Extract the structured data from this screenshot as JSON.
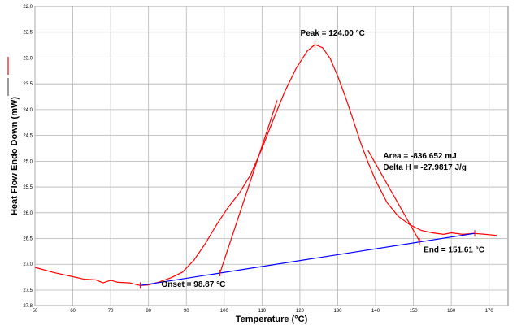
{
  "chart_data": {
    "type": "line",
    "title": "",
    "xlabel": "Temperature (°C)",
    "ylabel": "Heat Flow Endo Down (mW)",
    "xlim": [
      50,
      175
    ],
    "ylim": [
      22.0,
      27.8
    ],
    "y_inverted": true,
    "grid": true,
    "x_ticks": [
      "50",
      "60",
      "70",
      "80",
      "90",
      "100",
      "110",
      "120",
      "130",
      "140",
      "150",
      "160",
      "170"
    ],
    "y_ticks": [
      "22.0",
      "22.5",
      "23.0",
      "23.5",
      "24.0",
      "24.5",
      "25.0",
      "25.5",
      "26.0",
      "26.5",
      "27.0",
      "27.5",
      "27.8"
    ],
    "y_tick_values": [
      22.0,
      22.5,
      23.0,
      23.5,
      24.0,
      24.5,
      25.0,
      25.5,
      26.0,
      26.5,
      27.0,
      27.5,
      27.8
    ],
    "series": [
      {
        "color": "#ff0000",
        "x": [
          50,
          55,
          60,
          63,
          66,
          68,
          70,
          72,
          75,
          77.8,
          80,
          83,
          86,
          89,
          92,
          95,
          98,
          101,
          104,
          107,
          110,
          113,
          116,
          119,
          122,
          124,
          126,
          128,
          130,
          132,
          134,
          136,
          138,
          140,
          143,
          146,
          149,
          152,
          155,
          158,
          160,
          163,
          166,
          169,
          172
        ],
        "y": [
          27.06,
          27.16,
          27.24,
          27.29,
          27.3,
          27.36,
          27.31,
          27.35,
          27.36,
          27.41,
          27.4,
          27.34,
          27.26,
          27.15,
          26.92,
          26.6,
          26.23,
          25.9,
          25.62,
          25.26,
          24.75,
          24.19,
          23.65,
          23.2,
          22.86,
          22.74,
          22.8,
          23.01,
          23.35,
          23.75,
          24.18,
          24.63,
          25.02,
          25.37,
          25.8,
          26.07,
          26.23,
          26.34,
          26.39,
          26.42,
          26.39,
          26.42,
          26.4,
          26.42,
          26.44
        ]
      },
      {
        "color": "#0000ff",
        "x": [
          77.8,
          166.2
        ],
        "y": [
          27.41,
          26.4
        ]
      }
    ],
    "tangents": [
      {
        "color": "#ff0000",
        "x": [
          98.87,
          114
        ],
        "y": [
          27.17,
          23.82
        ]
      },
      {
        "color": "#ff0000",
        "x": [
          151.61,
          138
        ],
        "y": [
          26.55,
          24.79
        ]
      }
    ],
    "annotations": [
      {
        "text": "Peak = 124.00 °C",
        "x": 124.0,
        "y": 22.74
      },
      {
        "text": "Onset = 98.87 °C",
        "x": 98.87,
        "y": 27.17
      },
      {
        "text": "End = 151.61 °C",
        "x": 151.61,
        "y": 26.55
      },
      {
        "text": "Area = -836.652 mJ",
        "x": 142,
        "y": 25.03
      },
      {
        "text": "Delta H = -27.9817 J/g",
        "x": 142,
        "y": 25.03
      }
    ],
    "legend": [
      {
        "color": "#ff0000"
      },
      {
        "color": "#555555"
      }
    ]
  }
}
